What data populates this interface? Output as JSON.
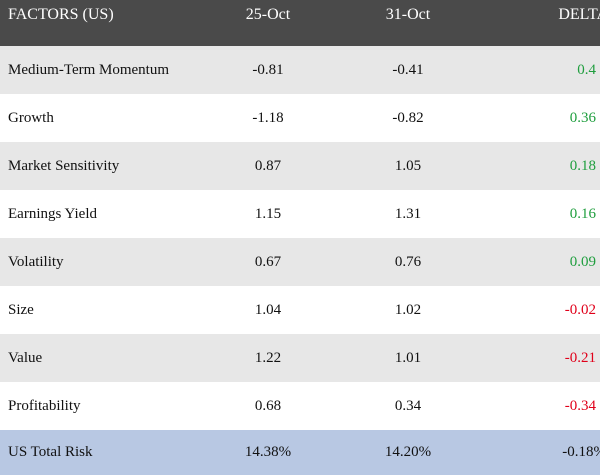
{
  "header": {
    "factor": "FACTORS (US)",
    "date1": "25-Oct",
    "date2": "31-Oct",
    "delta": "DELTA"
  },
  "rows": [
    {
      "factor": "Medium-Term Momentum",
      "d1": "-0.81",
      "d2": "-0.41",
      "delta": "0.4",
      "sign": "pos"
    },
    {
      "factor": "Growth",
      "d1": "-1.18",
      "d2": "-0.82",
      "delta": "0.36",
      "sign": "pos"
    },
    {
      "factor": "Market Sensitivity",
      "d1": "0.87",
      "d2": "1.05",
      "delta": "0.18",
      "sign": "pos"
    },
    {
      "factor": "Earnings Yield",
      "d1": "1.15",
      "d2": "1.31",
      "delta": "0.16",
      "sign": "pos"
    },
    {
      "factor": "Volatility",
      "d1": "0.67",
      "d2": "0.76",
      "delta": "0.09",
      "sign": "pos"
    },
    {
      "factor": "Size",
      "d1": "1.04",
      "d2": "1.02",
      "delta": "-0.02",
      "sign": "neg"
    },
    {
      "factor": "Value",
      "d1": "1.22",
      "d2": "1.01",
      "delta": "-0.21",
      "sign": "neg"
    },
    {
      "factor": "Profitability",
      "d1": "0.68",
      "d2": "0.34",
      "delta": "-0.34",
      "sign": "neg"
    }
  ],
  "total": {
    "label": "US Total Risk",
    "d1": "14.38%",
    "d2": "14.20%",
    "delta": "-0.18%"
  },
  "colors": {
    "header_bg": "#4a4a4a",
    "row_alt_bg": "#e7e7e7",
    "total_bg": "#b8c8e3",
    "positive": "#1f9e3e",
    "negative": "#e0001a"
  }
}
